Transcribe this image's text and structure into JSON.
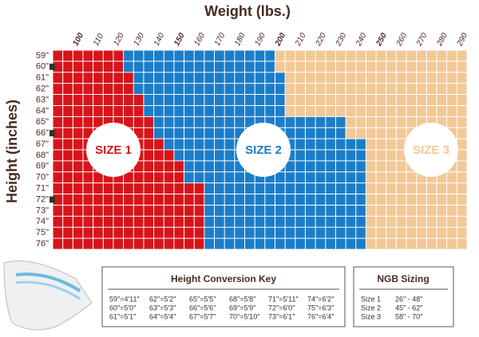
{
  "x_axis_title": "Weight (lbs.)",
  "y_axis_title": "Height (inches)",
  "weight_range": [
    90,
    295
  ],
  "weight_labels": [
    100,
    110,
    120,
    130,
    140,
    150,
    160,
    170,
    180,
    190,
    200,
    210,
    220,
    230,
    240,
    250,
    260,
    270,
    280,
    290
  ],
  "rows": [
    {
      "height": "59\"",
      "size1_max": 125,
      "size3_min": 200
    },
    {
      "height": "60\"",
      "size1_max": 125,
      "size3_min": 200
    },
    {
      "height": "61\"",
      "size1_max": 130,
      "size3_min": 205
    },
    {
      "height": "62\"",
      "size1_max": 130,
      "size3_min": 205
    },
    {
      "height": "63\"",
      "size1_max": 135,
      "size3_min": 205
    },
    {
      "height": "64\"",
      "size1_max": 135,
      "size3_min": 205
    },
    {
      "height": "65\"",
      "size1_max": 140,
      "size3_min": 235
    },
    {
      "height": "66\"",
      "size1_max": 140,
      "size3_min": 235
    },
    {
      "height": "67\"",
      "size1_max": 145,
      "size3_min": 245
    },
    {
      "height": "68\"",
      "size1_max": 150,
      "size3_min": 245
    },
    {
      "height": "69\"",
      "size1_max": 155,
      "size3_min": 245
    },
    {
      "height": "70\"",
      "size1_max": 155,
      "size3_min": 245
    },
    {
      "height": "71\"",
      "size1_max": 165,
      "size3_min": 245
    },
    {
      "height": "72\"",
      "size1_max": 165,
      "size3_min": 245
    },
    {
      "height": "73\"",
      "size1_max": 165,
      "size3_min": 245
    },
    {
      "height": "74\"",
      "size1_max": 165,
      "size3_min": 245
    },
    {
      "height": "75\"",
      "size1_max": 165,
      "size3_min": 245
    },
    {
      "height": "76\"",
      "size1_max": 165,
      "size3_min": 245
    }
  ],
  "sizes": [
    {
      "label": "SIZE 1",
      "color": "#d7141a"
    },
    {
      "label": "SIZE 2",
      "color": "#1b7dc9"
    },
    {
      "label": "SIZE 3",
      "color": "#f2c896"
    }
  ],
  "height_key": {
    "title": "Height Conversion Key",
    "columns": [
      [
        "59\"=4'11\"",
        "60\"=5'0\"",
        "61\"=5'1\""
      ],
      [
        "62\"=5'2\"",
        "63\"=5'3\"",
        "64\"=5'4\""
      ],
      [
        "65\"=5'5\"",
        "66\"=5'6\"",
        "67\"=5'7\""
      ],
      [
        "68\"=5'8\"",
        "69\"=5'9\"",
        "70\"=5'10\""
      ],
      [
        "71\"=5'11\"",
        "72\"=6'0\"",
        "73\"=6'1\""
      ],
      [
        "74\"=6'2\"",
        "75\"=6'3\"",
        "76\"=6'4\""
      ]
    ]
  },
  "ngb": {
    "title": "NGB Sizing",
    "rows": [
      [
        "Size 1",
        "26\" - 48\""
      ],
      [
        "Size 2",
        "45\" - 62\""
      ],
      [
        "Size 3",
        "58\" - 70\""
      ]
    ]
  }
}
